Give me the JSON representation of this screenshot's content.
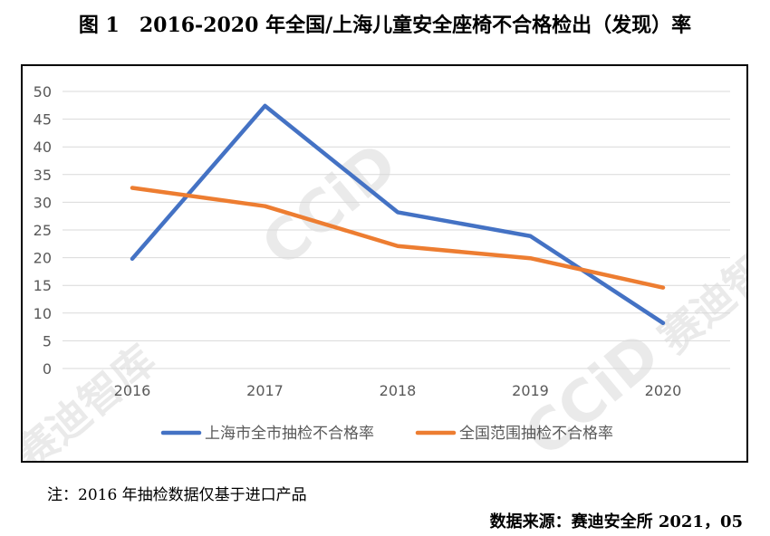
{
  "title": "图 1　2016-2020 年全国/上海儿童安全座椅不合格检出（发现）率",
  "note": "注：2016 年抽检数据仅基于进口产品",
  "source": "数据来源：赛迪安全所 2021，05",
  "watermark": {
    "text_left": "CCiD",
    "text_cn": "赛迪智库"
  },
  "chart_data": {
    "type": "line",
    "x": [
      "2016",
      "2017",
      "2018",
      "2019",
      "2020"
    ],
    "ylim": [
      0,
      50
    ],
    "yticks": [
      "0",
      "5",
      "10",
      "15",
      "20",
      "25",
      "30",
      "35",
      "40",
      "45",
      "50"
    ],
    "grid": true,
    "legend_position": "bottom",
    "series": [
      {
        "name": "上海市全市抽检不合格率",
        "color": "#4472C4",
        "values": [
          19.8,
          47.4,
          28.2,
          23.9,
          8.2
        ]
      },
      {
        "name": "全国范围抽检不合格率",
        "color": "#ED7D31",
        "values": [
          32.6,
          29.3,
          22.1,
          19.9,
          14.6
        ]
      }
    ]
  }
}
